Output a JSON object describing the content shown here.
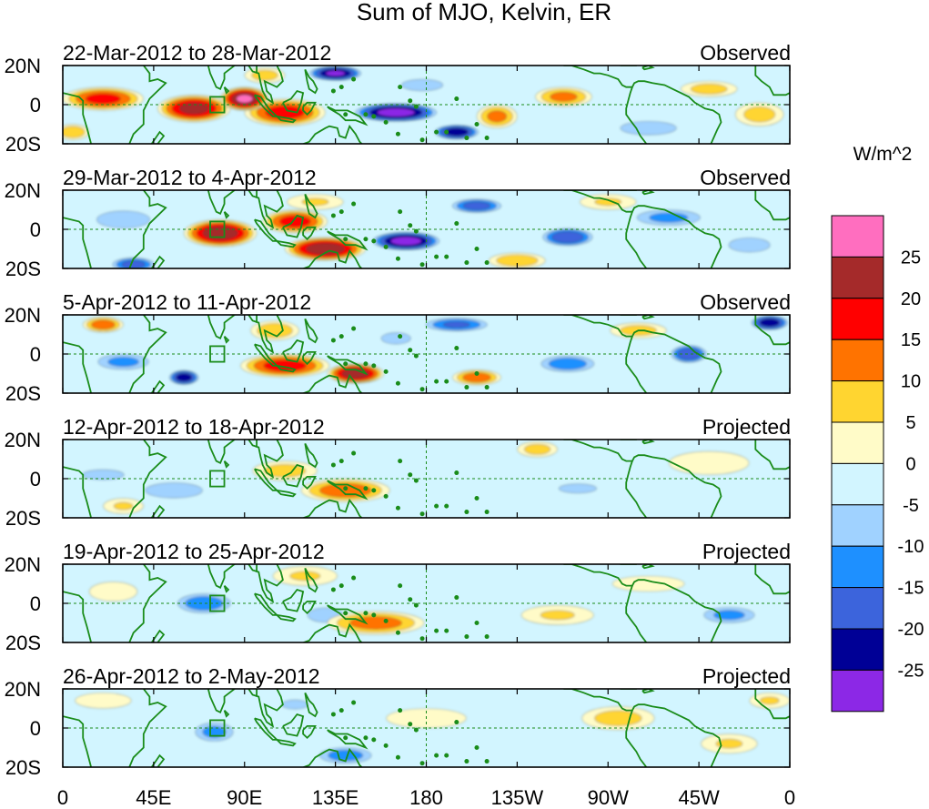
{
  "chart_data": {
    "type": "heatmap",
    "title": "Sum of MJO, Kelvin, ER",
    "xlabel": "",
    "ylabel": "",
    "xlim": [
      0,
      360
    ],
    "ylim": [
      -20,
      20
    ],
    "x_tick_labels": [
      "0",
      "45E",
      "90E",
      "135E",
      "180",
      "135W",
      "90W",
      "45W",
      "0"
    ],
    "y_tick_labels": [
      "20N",
      "0",
      "20S"
    ],
    "colorbar": {
      "unit_label": "W/m^2",
      "tick_labels": [
        "25",
        "20",
        "15",
        "10",
        "5",
        "0",
        "-5",
        "-10",
        "-15",
        "-20",
        "-25"
      ],
      "bins": [
        {
          "range": "> 25",
          "color": "#ff6ebf"
        },
        {
          "range": "20 to 25",
          "color": "#a52a2a"
        },
        {
          "range": "15 to 20",
          "color": "#ff0000"
        },
        {
          "range": "10 to 15",
          "color": "#ff7300"
        },
        {
          "range": "5 to 10",
          "color": "#ffd530"
        },
        {
          "range": "0 to 5",
          "color": "#fffbc8"
        },
        {
          "range": "-5 to 0",
          "color": "#d2f5ff"
        },
        {
          "range": "-10 to -5",
          "color": "#a0d2ff"
        },
        {
          "range": "-15 to -10",
          "color": "#1e90ff"
        },
        {
          "range": "-20 to -15",
          "color": "#3c64dc"
        },
        {
          "range": "-25 to -20",
          "color": "#000096"
        },
        {
          "range": "< -25",
          "color": "#8c28e6"
        }
      ]
    },
    "reference_lines": {
      "equator_lat": 0,
      "dateline_lon": 180
    },
    "land_outline_color": "#1a8c1a",
    "panels": [
      {
        "period": "22-Mar-2012 to 28-Mar-2012",
        "status": "Observed",
        "features": [
          {
            "lon": 20,
            "lat": 3,
            "value": 17,
            "sx": 20,
            "sy": 6
          },
          {
            "lon": 65,
            "lat": -2,
            "value": 22,
            "sx": 18,
            "sy": 7
          },
          {
            "lon": 90,
            "lat": 3,
            "value": 26,
            "sx": 12,
            "sy": 6
          },
          {
            "lon": 110,
            "lat": -4,
            "value": 18,
            "sx": 20,
            "sy": 7
          },
          {
            "lon": 100,
            "lat": 15,
            "value": 8,
            "sx": 10,
            "sy": 4
          },
          {
            "lon": 135,
            "lat": 16,
            "value": -26,
            "sx": 14,
            "sy": 4
          },
          {
            "lon": 165,
            "lat": -4,
            "value": -28,
            "sx": 22,
            "sy": 5
          },
          {
            "lon": 195,
            "lat": -14,
            "value": -24,
            "sx": 12,
            "sy": 4
          },
          {
            "lon": 215,
            "lat": -6,
            "value": 12,
            "sx": 10,
            "sy": 6
          },
          {
            "lon": 248,
            "lat": 4,
            "value": 12,
            "sx": 14,
            "sy": 5
          },
          {
            "lon": 178,
            "lat": 10,
            "value": -10,
            "sx": 14,
            "sy": 4
          },
          {
            "lon": 290,
            "lat": -12,
            "value": -9,
            "sx": 20,
            "sy": 5
          },
          {
            "lon": 320,
            "lat": 8,
            "value": 8,
            "sx": 14,
            "sy": 4
          },
          {
            "lon": 345,
            "lat": -5,
            "value": 8,
            "sx": 12,
            "sy": 6
          },
          {
            "lon": 5,
            "lat": -14,
            "value": 10,
            "sx": 8,
            "sy": 4
          }
        ]
      },
      {
        "period": "29-Mar-2012 to 4-Apr-2012",
        "status": "Observed",
        "features": [
          {
            "lon": 78,
            "lat": -2,
            "value": 24,
            "sx": 18,
            "sy": 7
          },
          {
            "lon": 115,
            "lat": 4,
            "value": 18,
            "sx": 16,
            "sy": 6
          },
          {
            "lon": 130,
            "lat": -10,
            "value": 24,
            "sx": 20,
            "sy": 6
          },
          {
            "lon": 125,
            "lat": 14,
            "value": 6,
            "sx": 14,
            "sy": 4
          },
          {
            "lon": 170,
            "lat": -6,
            "value": -28,
            "sx": 18,
            "sy": 5
          },
          {
            "lon": 205,
            "lat": 12,
            "value": -18,
            "sx": 14,
            "sy": 4
          },
          {
            "lon": 250,
            "lat": -4,
            "value": -20,
            "sx": 14,
            "sy": 5
          },
          {
            "lon": 300,
            "lat": 6,
            "value": -12,
            "sx": 20,
            "sy": 5
          },
          {
            "lon": 340,
            "lat": -8,
            "value": -10,
            "sx": 14,
            "sy": 5
          },
          {
            "lon": 35,
            "lat": -18,
            "value": -18,
            "sx": 12,
            "sy": 4
          },
          {
            "lon": 30,
            "lat": 5,
            "value": -10,
            "sx": 18,
            "sy": 6
          },
          {
            "lon": 225,
            "lat": -16,
            "value": 10,
            "sx": 14,
            "sy": 4
          },
          {
            "lon": 270,
            "lat": 14,
            "value": 6,
            "sx": 14,
            "sy": 4
          }
        ]
      },
      {
        "period": "5-Apr-2012 to 11-Apr-2012",
        "status": "Observed",
        "features": [
          {
            "lon": 20,
            "lat": 15,
            "value": 14,
            "sx": 10,
            "sy": 4
          },
          {
            "lon": 110,
            "lat": -6,
            "value": 18,
            "sx": 22,
            "sy": 6
          },
          {
            "lon": 145,
            "lat": -10,
            "value": 24,
            "sx": 14,
            "sy": 5
          },
          {
            "lon": 105,
            "lat": 12,
            "value": 10,
            "sx": 12,
            "sy": 5
          },
          {
            "lon": 60,
            "lat": -12,
            "value": -24,
            "sx": 8,
            "sy": 4
          },
          {
            "lon": 30,
            "lat": -4,
            "value": -12,
            "sx": 16,
            "sy": 5
          },
          {
            "lon": 195,
            "lat": 15,
            "value": -16,
            "sx": 18,
            "sy": 4
          },
          {
            "lon": 250,
            "lat": -5,
            "value": -14,
            "sx": 16,
            "sy": 5
          },
          {
            "lon": 310,
            "lat": 0,
            "value": -20,
            "sx": 10,
            "sy": 5
          },
          {
            "lon": 350,
            "lat": 16,
            "value": -24,
            "sx": 10,
            "sy": 4
          },
          {
            "lon": 205,
            "lat": -12,
            "value": 14,
            "sx": 12,
            "sy": 4
          },
          {
            "lon": 165,
            "lat": 8,
            "value": -10,
            "sx": 10,
            "sy": 4
          },
          {
            "lon": 285,
            "lat": 12,
            "value": 8,
            "sx": 14,
            "sy": 4
          }
        ]
      },
      {
        "period": "12-Apr-2012 to 18-Apr-2012",
        "status": "Projected",
        "features": [
          {
            "lon": 140,
            "lat": -6,
            "value": 14,
            "sx": 22,
            "sy": 6
          },
          {
            "lon": 110,
            "lat": 4,
            "value": 8,
            "sx": 16,
            "sy": 5
          },
          {
            "lon": 55,
            "lat": -6,
            "value": -8,
            "sx": 22,
            "sy": 6
          },
          {
            "lon": 20,
            "lat": 2,
            "value": -8,
            "sx": 16,
            "sy": 4
          },
          {
            "lon": 235,
            "lat": 15,
            "value": 8,
            "sx": 10,
            "sy": 4
          },
          {
            "lon": 255,
            "lat": -5,
            "value": -6,
            "sx": 20,
            "sy": 5
          },
          {
            "lon": 320,
            "lat": 8,
            "value": 4,
            "sx": 20,
            "sy": 6
          },
          {
            "lon": 185,
            "lat": 10,
            "value": -4,
            "sx": 16,
            "sy": 4
          },
          {
            "lon": 30,
            "lat": -14,
            "value": 6,
            "sx": 10,
            "sy": 4
          }
        ]
      },
      {
        "period": "19-Apr-2012 to 25-Apr-2012",
        "status": "Projected",
        "features": [
          {
            "lon": 70,
            "lat": 0,
            "value": -14,
            "sx": 16,
            "sy": 6
          },
          {
            "lon": 155,
            "lat": -10,
            "value": 13,
            "sx": 24,
            "sy": 6
          },
          {
            "lon": 120,
            "lat": 14,
            "value": 6,
            "sx": 16,
            "sy": 5
          },
          {
            "lon": 130,
            "lat": -6,
            "value": -10,
            "sx": 12,
            "sy": 5
          },
          {
            "lon": 245,
            "lat": -6,
            "value": 6,
            "sx": 18,
            "sy": 5
          },
          {
            "lon": 330,
            "lat": -6,
            "value": -12,
            "sx": 16,
            "sy": 5
          },
          {
            "lon": 25,
            "lat": 6,
            "value": 4,
            "sx": 12,
            "sy": 5
          },
          {
            "lon": 210,
            "lat": 12,
            "value": -5,
            "sx": 22,
            "sy": 4
          },
          {
            "lon": 290,
            "lat": 10,
            "value": 4,
            "sx": 18,
            "sy": 4
          }
        ]
      },
      {
        "period": "26-Apr-2012 to 2-May-2012",
        "status": "Projected",
        "features": [
          {
            "lon": 75,
            "lat": -2,
            "value": -12,
            "sx": 12,
            "sy": 6
          },
          {
            "lon": 140,
            "lat": -14,
            "value": -13,
            "sx": 16,
            "sy": 5
          },
          {
            "lon": 115,
            "lat": 12,
            "value": -6,
            "sx": 14,
            "sy": 5
          },
          {
            "lon": 180,
            "lat": 5,
            "value": 4,
            "sx": 20,
            "sy": 5
          },
          {
            "lon": 275,
            "lat": 5,
            "value": 8,
            "sx": 18,
            "sy": 6
          },
          {
            "lon": 330,
            "lat": -8,
            "value": 6,
            "sx": 14,
            "sy": 5
          },
          {
            "lon": 20,
            "lat": 14,
            "value": 5,
            "sx": 14,
            "sy": 4
          },
          {
            "lon": 210,
            "lat": -12,
            "value": -5,
            "sx": 18,
            "sy": 4
          },
          {
            "lon": 350,
            "lat": 14,
            "value": 6,
            "sx": 10,
            "sy": 4
          }
        ]
      }
    ]
  }
}
